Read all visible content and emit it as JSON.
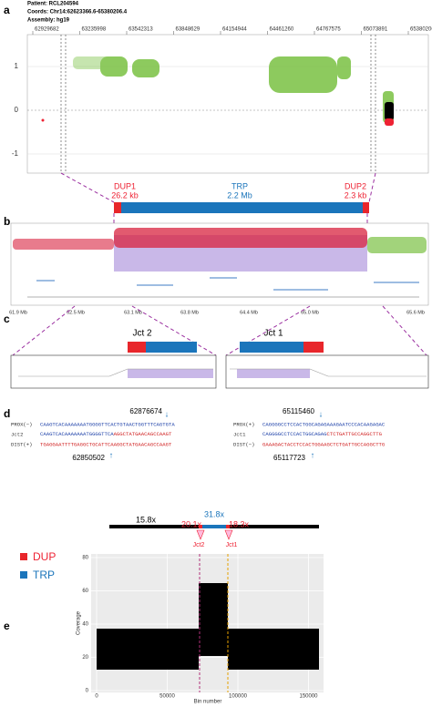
{
  "panels": {
    "a": {
      "label": "a",
      "header": [
        "Patient: RCL204594",
        "Coords: Chr14:62623366.6-65380206.4",
        "Assembly: hg19"
      ],
      "ticks": [
        "62929682",
        "63235998",
        "63542313",
        "63848629",
        "64154944",
        "64461260",
        "64767575",
        "65073891",
        "65380206"
      ],
      "yticks": [
        "1",
        "0",
        "-1"
      ],
      "dup1": "DUP1",
      "dup1_size": "26.2 kb",
      "trp": "TRP",
      "trp_size": "2.2 Mb",
      "dup2": "DUP2",
      "dup2_size": "2.3 kb"
    },
    "b": {
      "label": "b",
      "ticks": [
        "61.9 Mb",
        "62.5 Mb",
        "63.1 Mb",
        "63.8 Mb",
        "64.4 Mb",
        "65.0 Mb",
        "65.6 Mb"
      ]
    },
    "c": {
      "label": "c",
      "jct2": "Jct 2",
      "jct1": "Jct 1"
    },
    "d": {
      "label": "d",
      "left": {
        "top": "62876674",
        "bottom": "62850502",
        "names": [
          "PROX(−)",
          "Jct2",
          "DIST(+)"
        ],
        "prox": "CAAGTCACAAAAAAATGGGGTTCACTGTAACTGGTTTCAGTGTA",
        "jct_a": "CAAGTCACAAAAAAATGGGGTTCA",
        "jct_b": "AGGCTATGAACAGCCAAGT",
        "dist": "TGAGGAATTTTGAGGCTGCATTCAAGGCTATGAACAGCCAAGT"
      },
      "right": {
        "top": "65115460",
        "bottom": "65117723",
        "names": [
          "PROX(+)",
          "Jct1",
          "DIST(−)"
        ],
        "prox": "CAGGGGCCTCCACTGGCAGAGAAAGAATCCCACAAGAGAC",
        "jct_a": "CAGGGGCCTCCACTGGCAGAG",
        "jct_b": "CTCTGATTGCCAGGCTTG",
        "dist": "GAAAGACTACCTCCACTGGAAGCTCTGATTGCCAGGCTTG"
      }
    },
    "e": {
      "label": "e",
      "cov_left": "15.8x",
      "cov_trp": "31.8x",
      "cov_dup1": "20.1x",
      "cov_dup2": "18.3x",
      "jct2": "Jct2",
      "jct1": "Jct1",
      "legend": [
        "DUP",
        "TRP"
      ],
      "yticks": [
        "80",
        "60",
        "40",
        "20",
        "0"
      ],
      "xticks": [
        "0",
        "50000",
        "100000",
        "150000"
      ],
      "xlabel": "Bin number",
      "ylabel": "Coverage"
    }
  }
}
